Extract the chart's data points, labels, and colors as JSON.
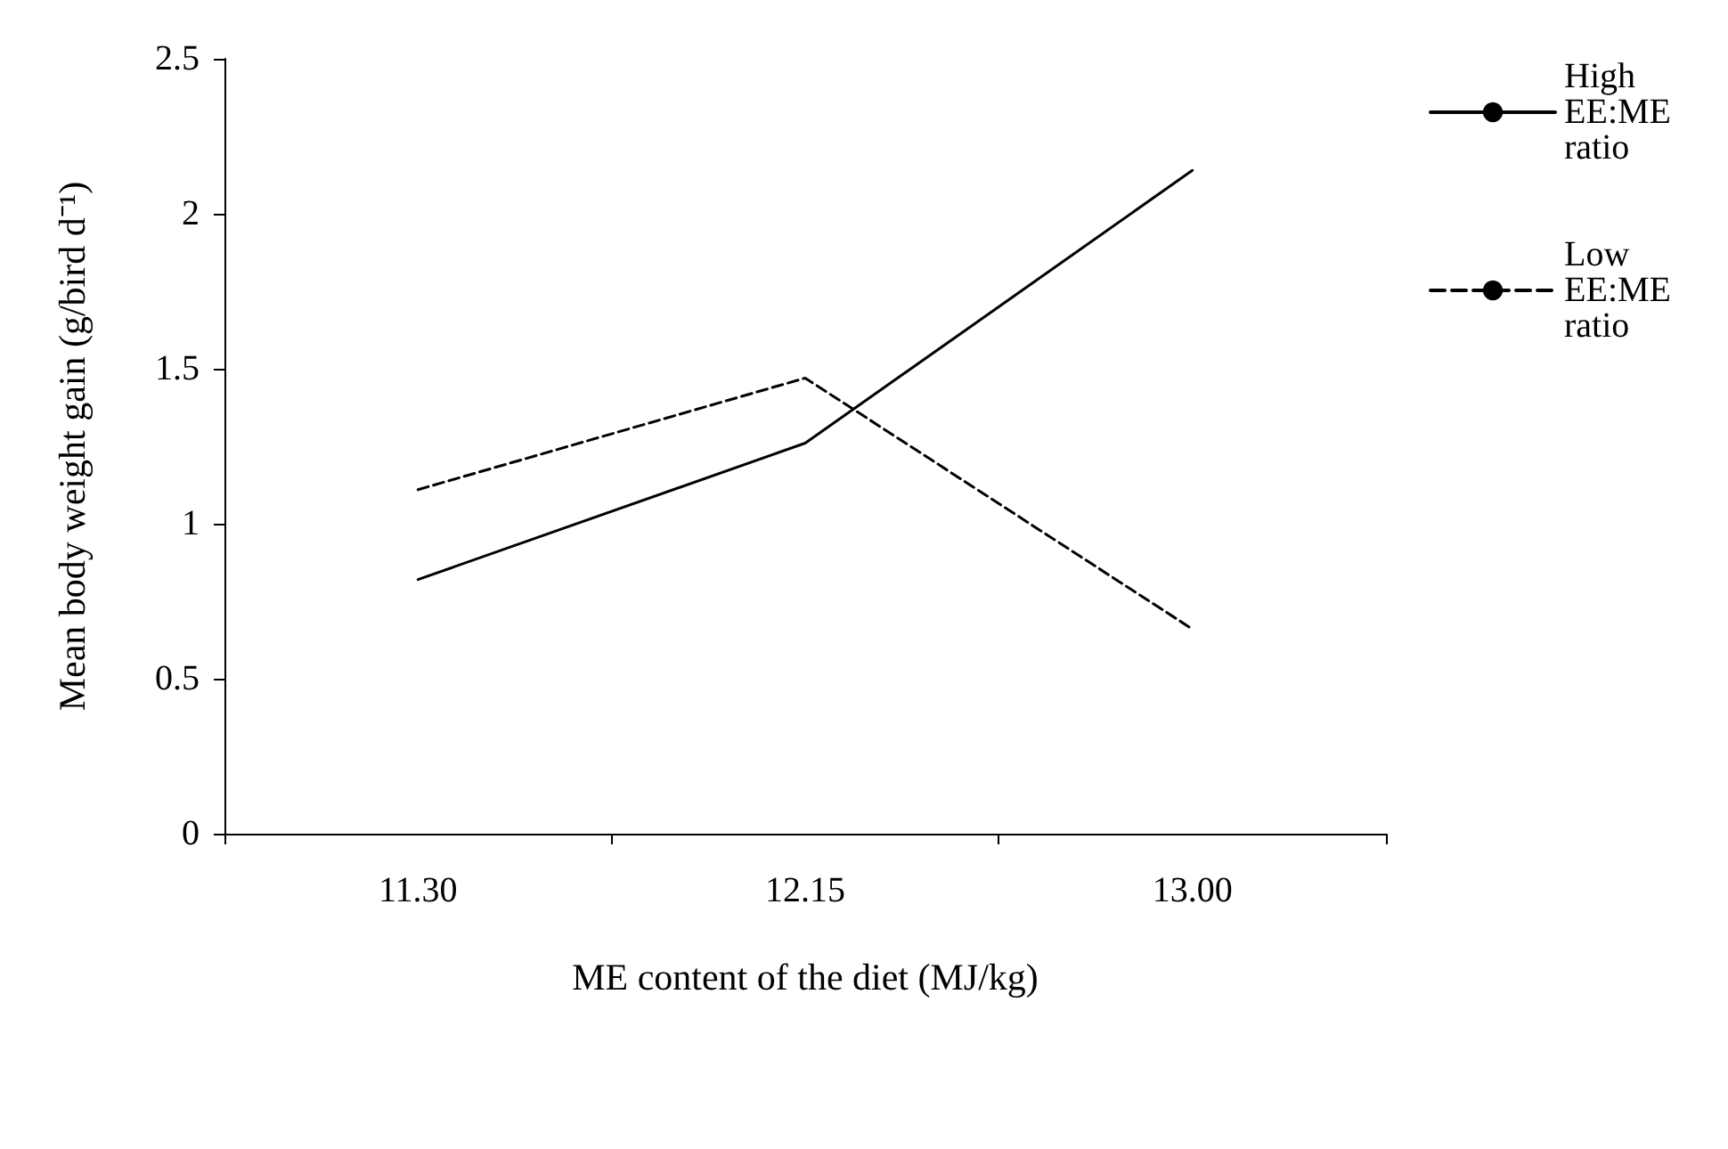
{
  "chart_data": {
    "type": "line",
    "xlabel": "ME content of the diet (MJ/kg)",
    "ylabel": "Mean body weight gain (g/bird d⁻¹)",
    "categories": [
      "11.30",
      "12.15",
      "13.00"
    ],
    "series": [
      {
        "name": "High EE:ME ratio",
        "color": "#000000",
        "line_style": "solid",
        "values": [
          0.82,
          1.26,
          2.14
        ]
      },
      {
        "name": "Low EE:ME ratio",
        "color": "#000000",
        "line_style": "dashed",
        "values": [
          1.11,
          1.47,
          0.66
        ]
      }
    ],
    "ylim": [
      0,
      2.5
    ],
    "yticks": [
      0,
      0.5,
      1,
      1.5,
      2,
      2.5
    ],
    "grid": false,
    "legend": "right",
    "marker": "none"
  }
}
